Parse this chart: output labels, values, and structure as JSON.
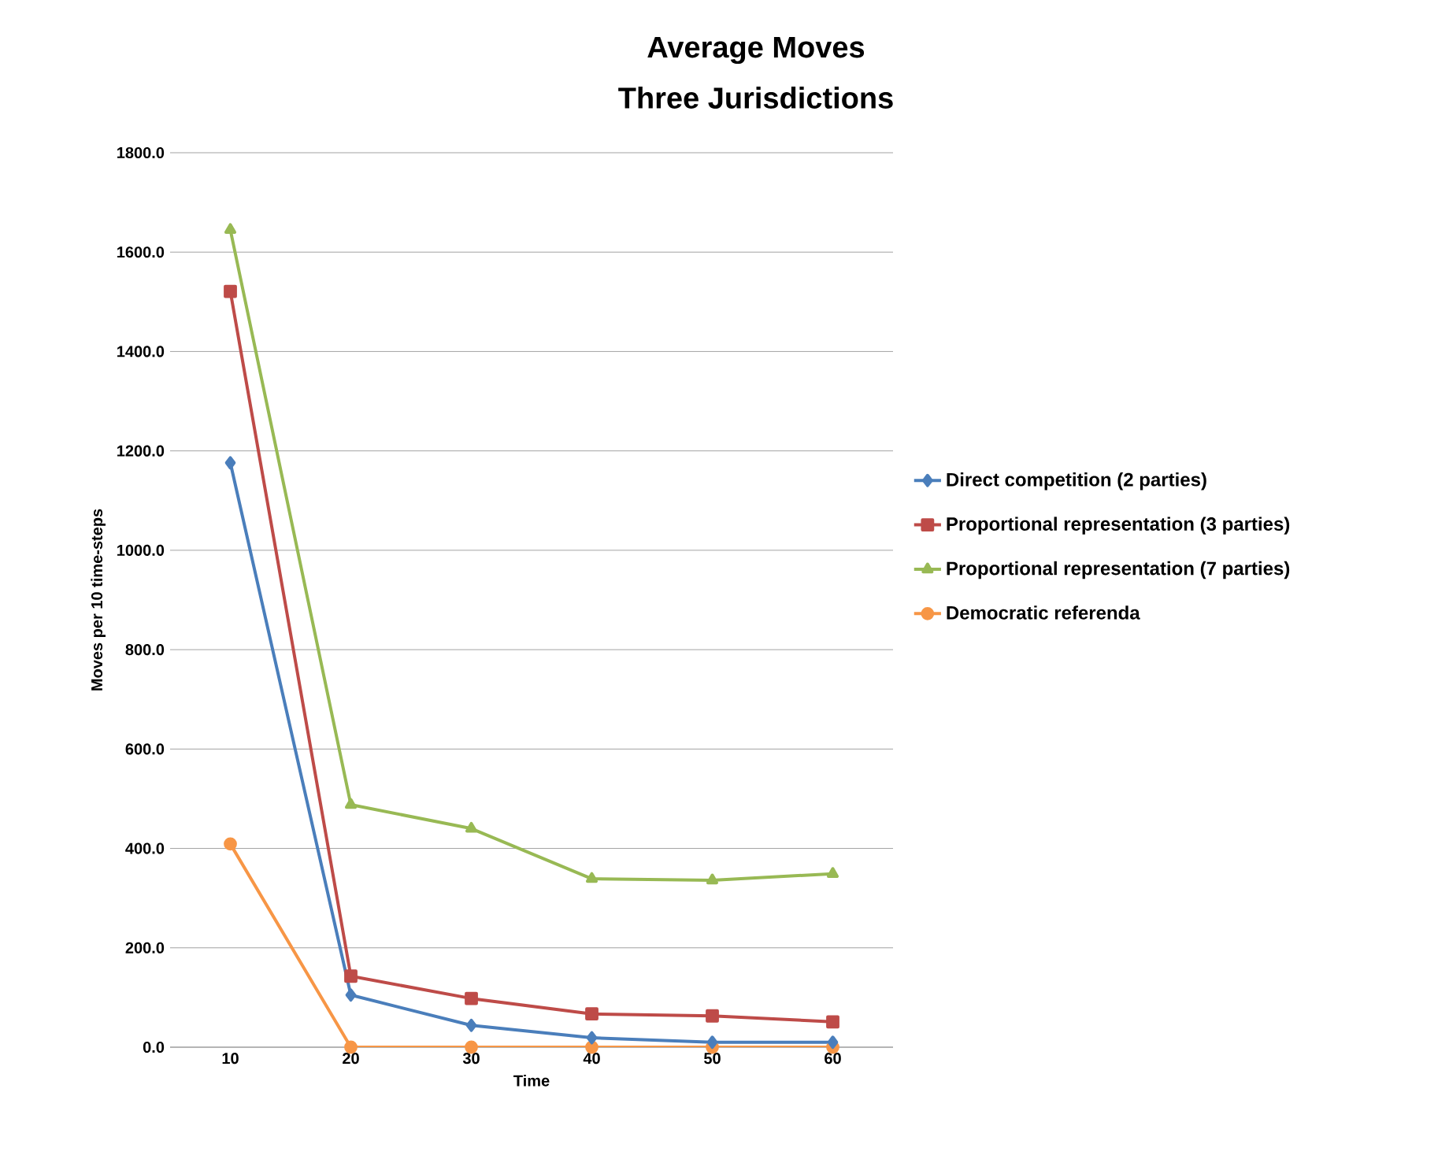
{
  "chart_data": {
    "type": "line",
    "title": "Average Moves",
    "subtitle": "Three Jurisdictions",
    "xlabel": "Time",
    "ylabel": "Moves per 10 time-steps",
    "categories": [
      "10",
      "20",
      "30",
      "40",
      "50",
      "60"
    ],
    "series": [
      {
        "name": "Direct competition (2 parties)",
        "color": "#4a7ebb",
        "marker": "diamond",
        "values": [
          1176,
          105,
          44,
          19,
          10,
          10
        ]
      },
      {
        "name": "Proportional representation (3 parties)",
        "color": "#be4b48",
        "marker": "square",
        "values": [
          1521,
          143,
          98,
          67,
          63,
          51
        ]
      },
      {
        "name": "Proportional representation (7 parties)",
        "color": "#98b954",
        "marker": "triangle",
        "values": [
          1645,
          488,
          440,
          339,
          336,
          349
        ]
      },
      {
        "name": "Democratic referenda",
        "color": "#f79646",
        "marker": "circle",
        "values": [
          409,
          0,
          0,
          0,
          0,
          0
        ]
      }
    ],
    "ylim": [
      0,
      1800
    ],
    "yticks": [
      {
        "value": 0,
        "label": "0.0"
      },
      {
        "value": 200,
        "label": "200.0"
      },
      {
        "value": 400,
        "label": "400.0"
      },
      {
        "value": 600,
        "label": "600.0"
      },
      {
        "value": 800,
        "label": "800.0"
      },
      {
        "value": 1000,
        "label": "1000.0"
      },
      {
        "value": 1200,
        "label": "1200.0"
      },
      {
        "value": 1400,
        "label": "1400.0"
      },
      {
        "value": 1600,
        "label": "1600.0"
      },
      {
        "value": 1800,
        "label": "1800.0"
      }
    ],
    "grid": "y",
    "legend": "right",
    "line_style": "solid"
  }
}
